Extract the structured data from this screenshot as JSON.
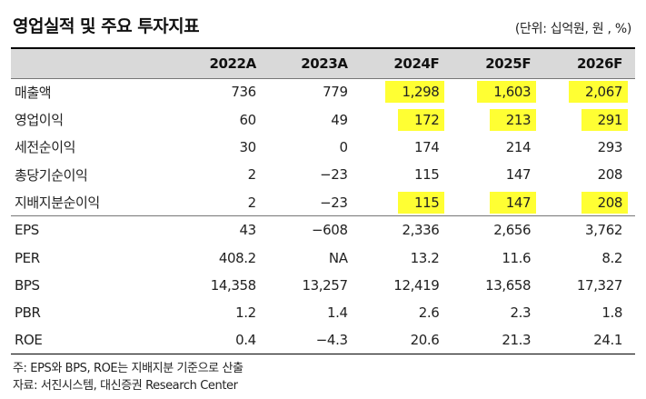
{
  "title": "영업실적 및 주요 투자지표",
  "unit": "(단위: 십억원, 원 , %)",
  "table": {
    "columns": [
      "",
      "2022A",
      "2023A",
      "2024F",
      "2025F",
      "2026F"
    ],
    "rows": [
      {
        "label": "매출액",
        "values": [
          "736",
          "779",
          "1,298",
          "1,603",
          "2,067"
        ],
        "highlighted": [
          false,
          false,
          true,
          true,
          true
        ]
      },
      {
        "label": "영업이익",
        "values": [
          "60",
          "49",
          "172",
          "213",
          "291"
        ],
        "highlighted": [
          false,
          false,
          true,
          true,
          true
        ]
      },
      {
        "label": "세전순이익",
        "values": [
          "30",
          "0",
          "174",
          "214",
          "293"
        ],
        "highlighted": [
          false,
          false,
          false,
          false,
          false
        ]
      },
      {
        "label": "총당기순이익",
        "values": [
          "2",
          "−23",
          "115",
          "147",
          "208"
        ],
        "highlighted": [
          false,
          false,
          false,
          false,
          false
        ]
      },
      {
        "label": "지배지분순이익",
        "values": [
          "2",
          "−23",
          "115",
          "147",
          "208"
        ],
        "highlighted": [
          false,
          false,
          true,
          true,
          true
        ]
      },
      {
        "label": "EPS",
        "values": [
          "43",
          "−608",
          "2,336",
          "2,656",
          "3,762"
        ],
        "highlighted": [
          false,
          false,
          false,
          false,
          false
        ]
      },
      {
        "label": "PER",
        "values": [
          "408.2",
          "NA",
          "13.2",
          "11.6",
          "8.2"
        ],
        "highlighted": [
          false,
          false,
          false,
          false,
          false
        ]
      },
      {
        "label": "BPS",
        "values": [
          "14,358",
          "13,257",
          "12,419",
          "13,658",
          "17,327"
        ],
        "highlighted": [
          false,
          false,
          false,
          false,
          false
        ]
      },
      {
        "label": "PBR",
        "values": [
          "1.2",
          "1.4",
          "2.6",
          "2.3",
          "1.8"
        ],
        "highlighted": [
          false,
          false,
          false,
          false,
          false
        ]
      },
      {
        "label": "ROE",
        "values": [
          "0.4",
          "−4.3",
          "20.6",
          "21.3",
          "24.1"
        ],
        "highlighted": [
          false,
          false,
          false,
          false,
          false
        ]
      }
    ]
  },
  "highlight_color": "#ffff33",
  "header_bg_color": "#d9d9d9",
  "notes": {
    "note1": "주: EPS와 BPS, ROE는 지배지분 기준으로 산출",
    "note2": "자료: 서진시스템, 대신증권 Research Center"
  }
}
